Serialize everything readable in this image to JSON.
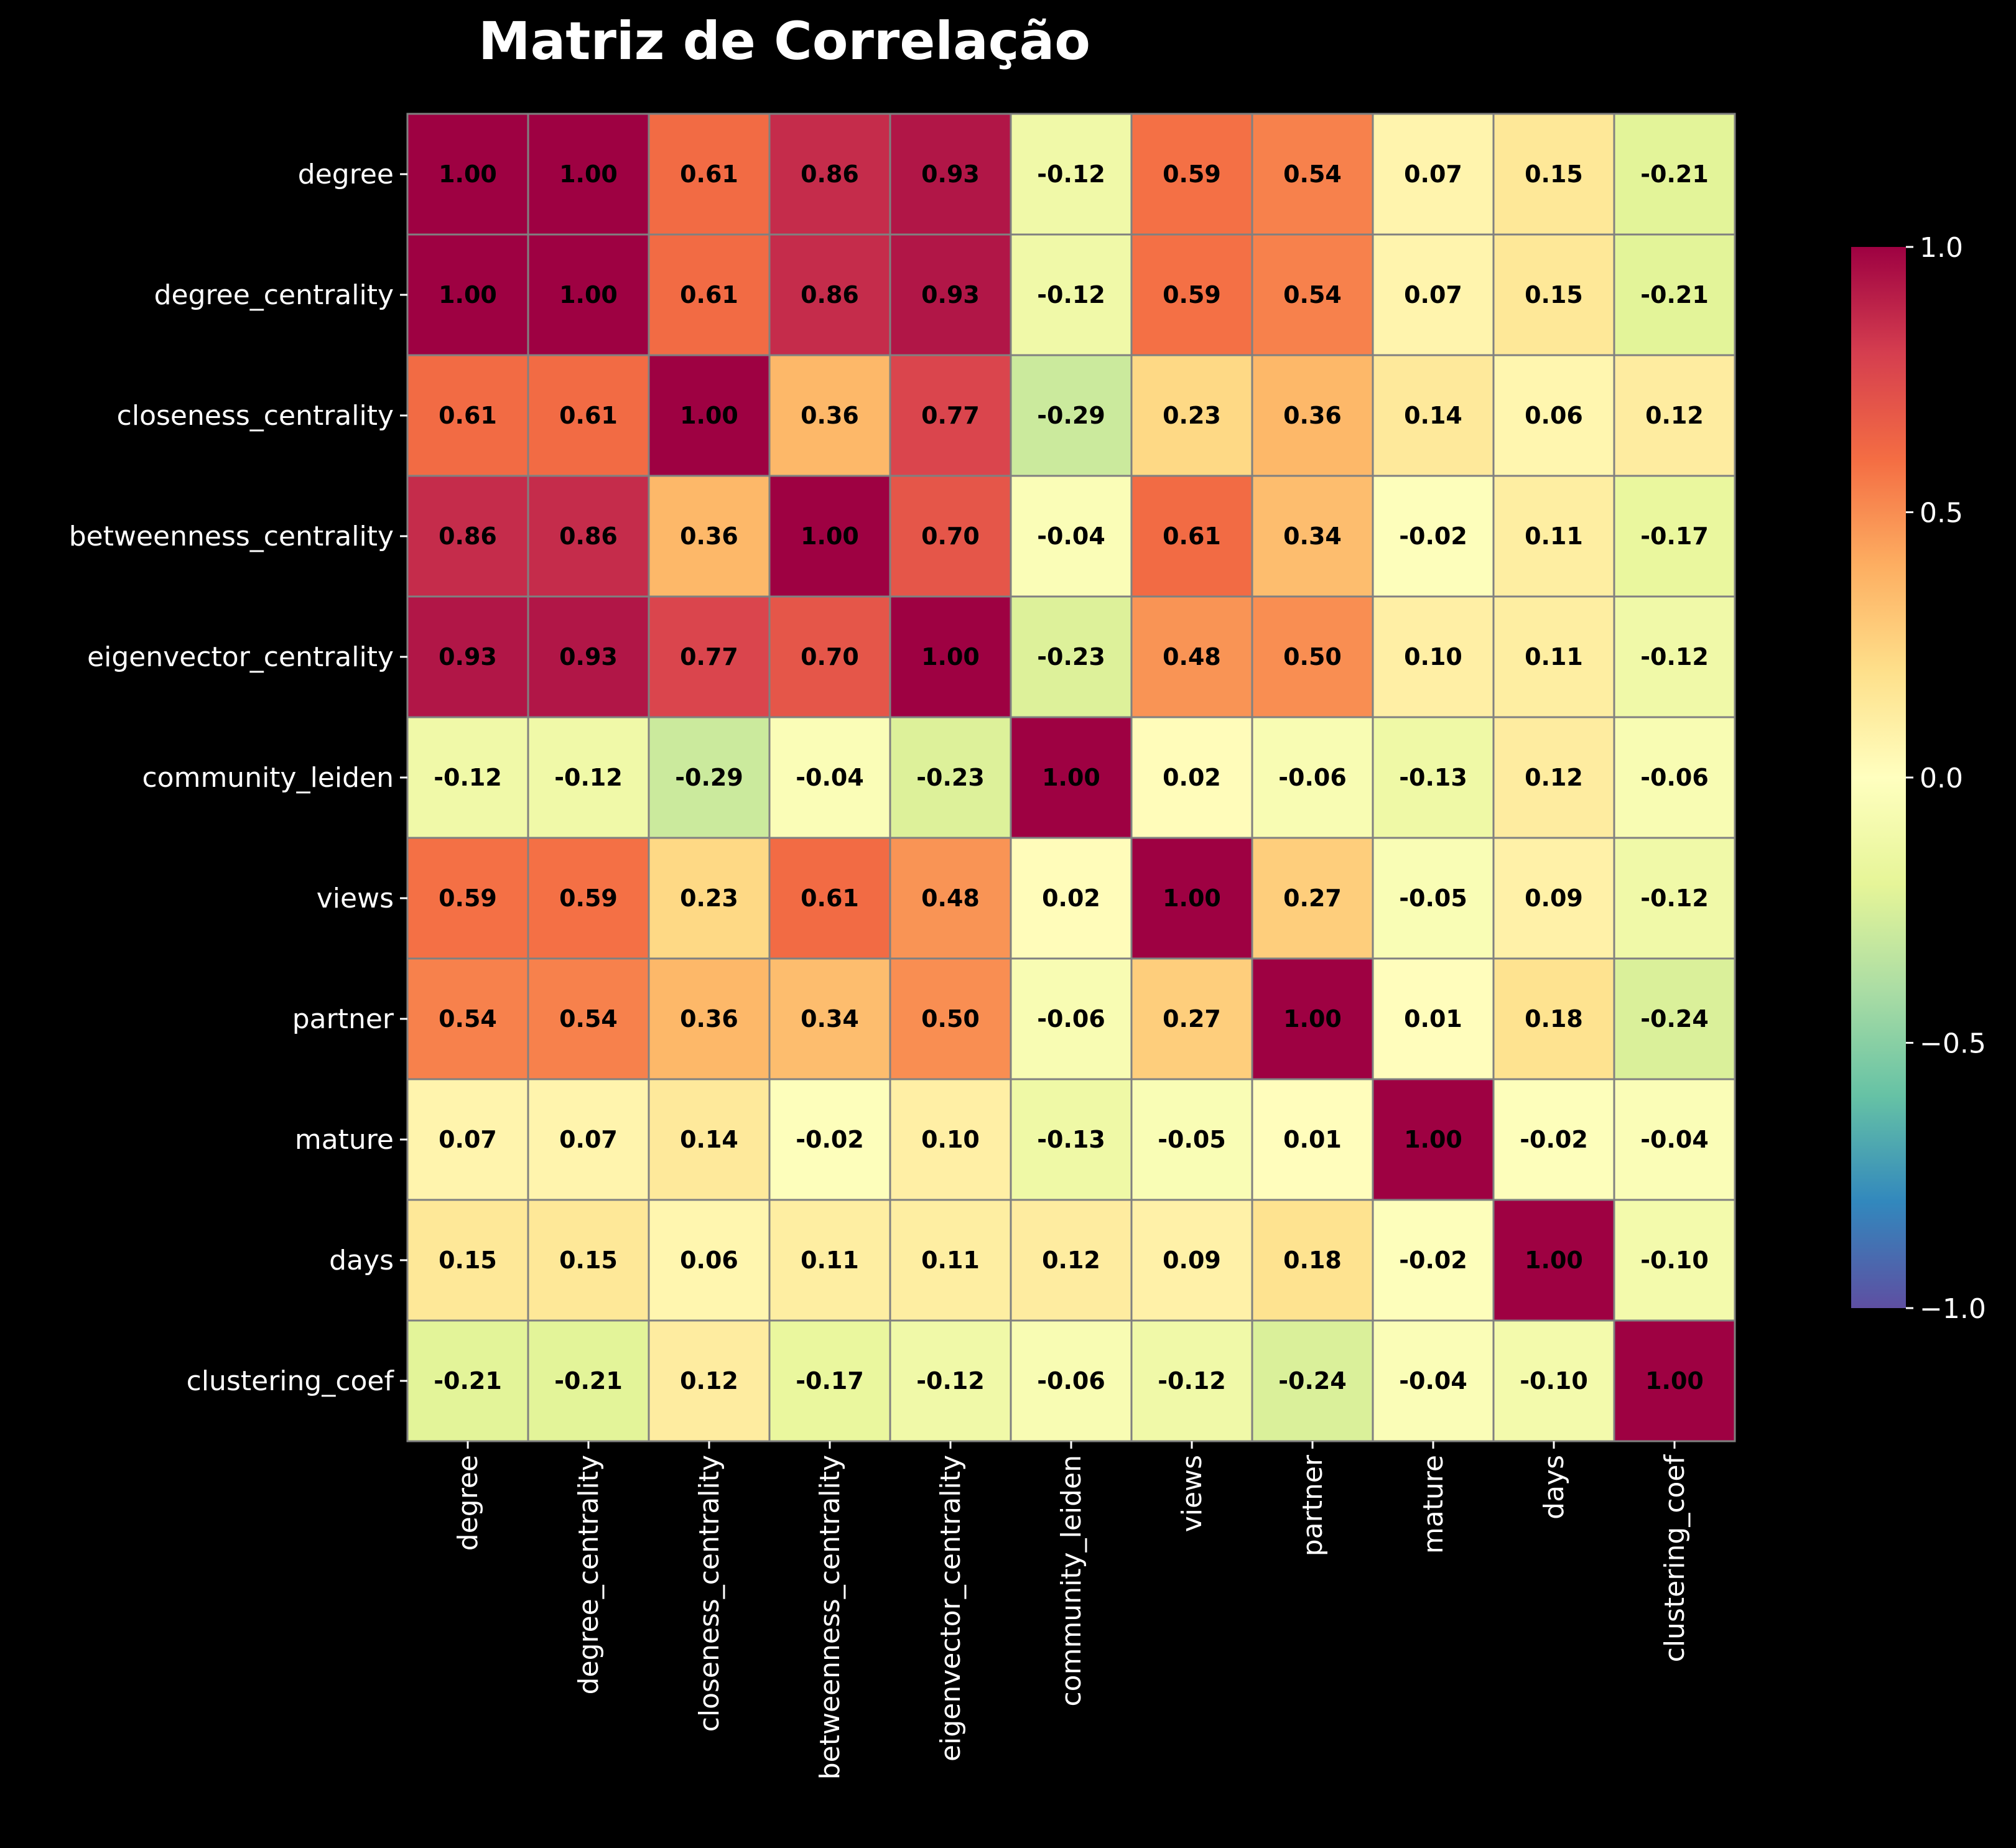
{
  "chart_data": {
    "type": "heatmap",
    "title": "Matriz de Correlação",
    "labels": [
      "degree",
      "degree_centrality",
      "closeness_centrality",
      "betweenness_centrality",
      "eigenvector_centrality",
      "community_leiden",
      "views",
      "partner",
      "mature",
      "days",
      "clustering_coef"
    ],
    "matrix": [
      [
        1.0,
        1.0,
        0.61,
        0.86,
        0.93,
        -0.12,
        0.59,
        0.54,
        0.07,
        0.15,
        -0.21
      ],
      [
        1.0,
        1.0,
        0.61,
        0.86,
        0.93,
        -0.12,
        0.59,
        0.54,
        0.07,
        0.15,
        -0.21
      ],
      [
        0.61,
        0.61,
        1.0,
        0.36,
        0.77,
        -0.29,
        0.23,
        0.36,
        0.14,
        0.06,
        0.12
      ],
      [
        0.86,
        0.86,
        0.36,
        1.0,
        0.7,
        -0.04,
        0.61,
        0.34,
        -0.02,
        0.11,
        -0.17
      ],
      [
        0.93,
        0.93,
        0.77,
        0.7,
        1.0,
        -0.23,
        0.48,
        0.5,
        0.1,
        0.11,
        -0.12
      ],
      [
        -0.12,
        -0.12,
        -0.29,
        -0.04,
        -0.23,
        1.0,
        0.02,
        -0.06,
        -0.13,
        0.12,
        -0.06
      ],
      [
        0.59,
        0.59,
        0.23,
        0.61,
        0.48,
        0.02,
        1.0,
        0.27,
        -0.05,
        0.09,
        -0.12
      ],
      [
        0.54,
        0.54,
        0.36,
        0.34,
        0.5,
        -0.06,
        0.27,
        1.0,
        0.01,
        0.18,
        -0.24
      ],
      [
        0.07,
        0.07,
        0.14,
        -0.02,
        0.1,
        -0.13,
        -0.05,
        0.01,
        1.0,
        -0.02,
        -0.04
      ],
      [
        0.15,
        0.15,
        0.06,
        0.11,
        0.11,
        0.12,
        0.09,
        0.18,
        -0.02,
        1.0,
        -0.1
      ],
      [
        -0.21,
        -0.21,
        0.12,
        -0.17,
        -0.12,
        -0.06,
        -0.12,
        -0.24,
        -0.04,
        -0.1,
        1.0
      ]
    ],
    "value_format": "2 decimals",
    "colorbar": {
      "colormap": "Spectral_r",
      "range": [
        -1.0,
        1.0
      ],
      "ticks": [
        1.0,
        0.5,
        0.0,
        -0.5,
        -1.0
      ],
      "tick_labels": [
        "1.0",
        "0.5",
        "0.0",
        "−0.5",
        "−1.0"
      ]
    },
    "colors": {
      "background": "#000000",
      "text": "#ffffff",
      "annotation_text": "#000000",
      "grid_lines": "#808080"
    }
  }
}
